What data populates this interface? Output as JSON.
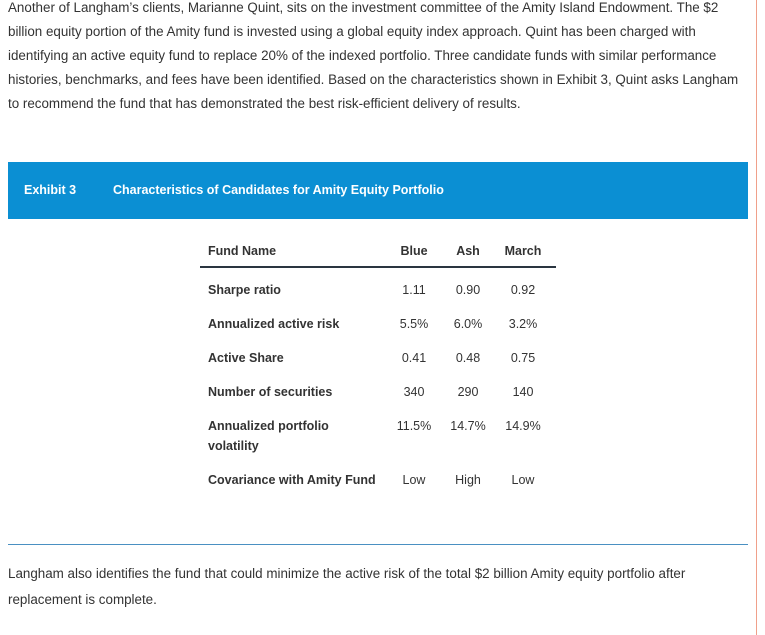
{
  "intro_text": "Another of Langham’s clients, Marianne Quint, sits on the investment committee of the Amity Island Endowment. The $2 billion equity portion of the Amity fund is invested using a global equity index approach. Quint has been charged with identifying an active equity fund to replace 20% of the indexed portfolio. Three candidate funds with similar performance histories, benchmarks, and fees have been identified. Based on the characteristics shown in Exhibit 3, Quint asks Langham to recommend the fund that has demonstrated the best risk-efficient delivery of results.",
  "exhibit": {
    "number": "Exhibit 3",
    "title": "Characteristics of Candidates for Amity Equity Portfolio"
  },
  "table": {
    "header": {
      "label": "Fund Name",
      "blue": "Blue",
      "ash": "Ash",
      "march": "March"
    },
    "rows": [
      {
        "label": "Sharpe ratio",
        "blue": "1.11",
        "ash": "0.90",
        "march": "0.92"
      },
      {
        "label": "Annualized active risk",
        "blue": "5.5%",
        "ash": "6.0%",
        "march": "3.2%"
      },
      {
        "label": "Active Share",
        "blue": "0.41",
        "ash": "0.48",
        "march": "0.75"
      },
      {
        "label": "Number of securities",
        "blue": "340",
        "ash": "290",
        "march": "140"
      },
      {
        "label": "Annualized portfolio volatility",
        "blue": "11.5%",
        "ash": "14.7%",
        "march": "14.9%"
      },
      {
        "label": "Covariance with Amity Fund",
        "blue": "Low",
        "ash": "High",
        "march": "Low"
      }
    ]
  },
  "outro_text": "Langham also identifies the fund that could minimize the active risk of the total $2 billion Amity equity portfolio after replacement is complete.",
  "colors": {
    "band": "#0b8fd3",
    "text": "#333333",
    "rule": "#4a90c2",
    "side_rule": "#f0a08a"
  }
}
